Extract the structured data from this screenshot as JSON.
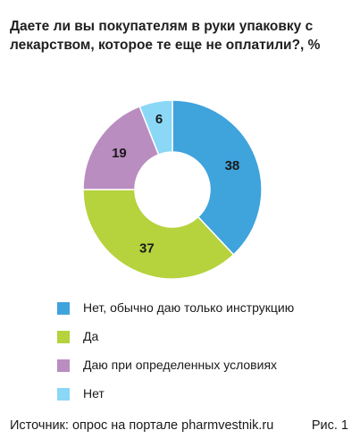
{
  "title": {
    "line1": "Даете ли вы покупателям в руки упаковку с",
    "line2": "лекарством, которое те еще не оплатили?, %"
  },
  "chart_data": {
    "type": "pie",
    "donut": true,
    "categories": [
      "Нет, обычно даю только инструкцию",
      "Да",
      "Даю при определенных условиях",
      "Нет"
    ],
    "values": [
      38,
      37,
      19,
      6
    ],
    "colors": [
      "#3fa3dc",
      "#b6d23d",
      "#b98dc0",
      "#8ad8f6"
    ],
    "legend_position": "bottom"
  },
  "source": "Источник: опрос на портале pharmvestnik.ru",
  "figure_label": "Рис. 1"
}
